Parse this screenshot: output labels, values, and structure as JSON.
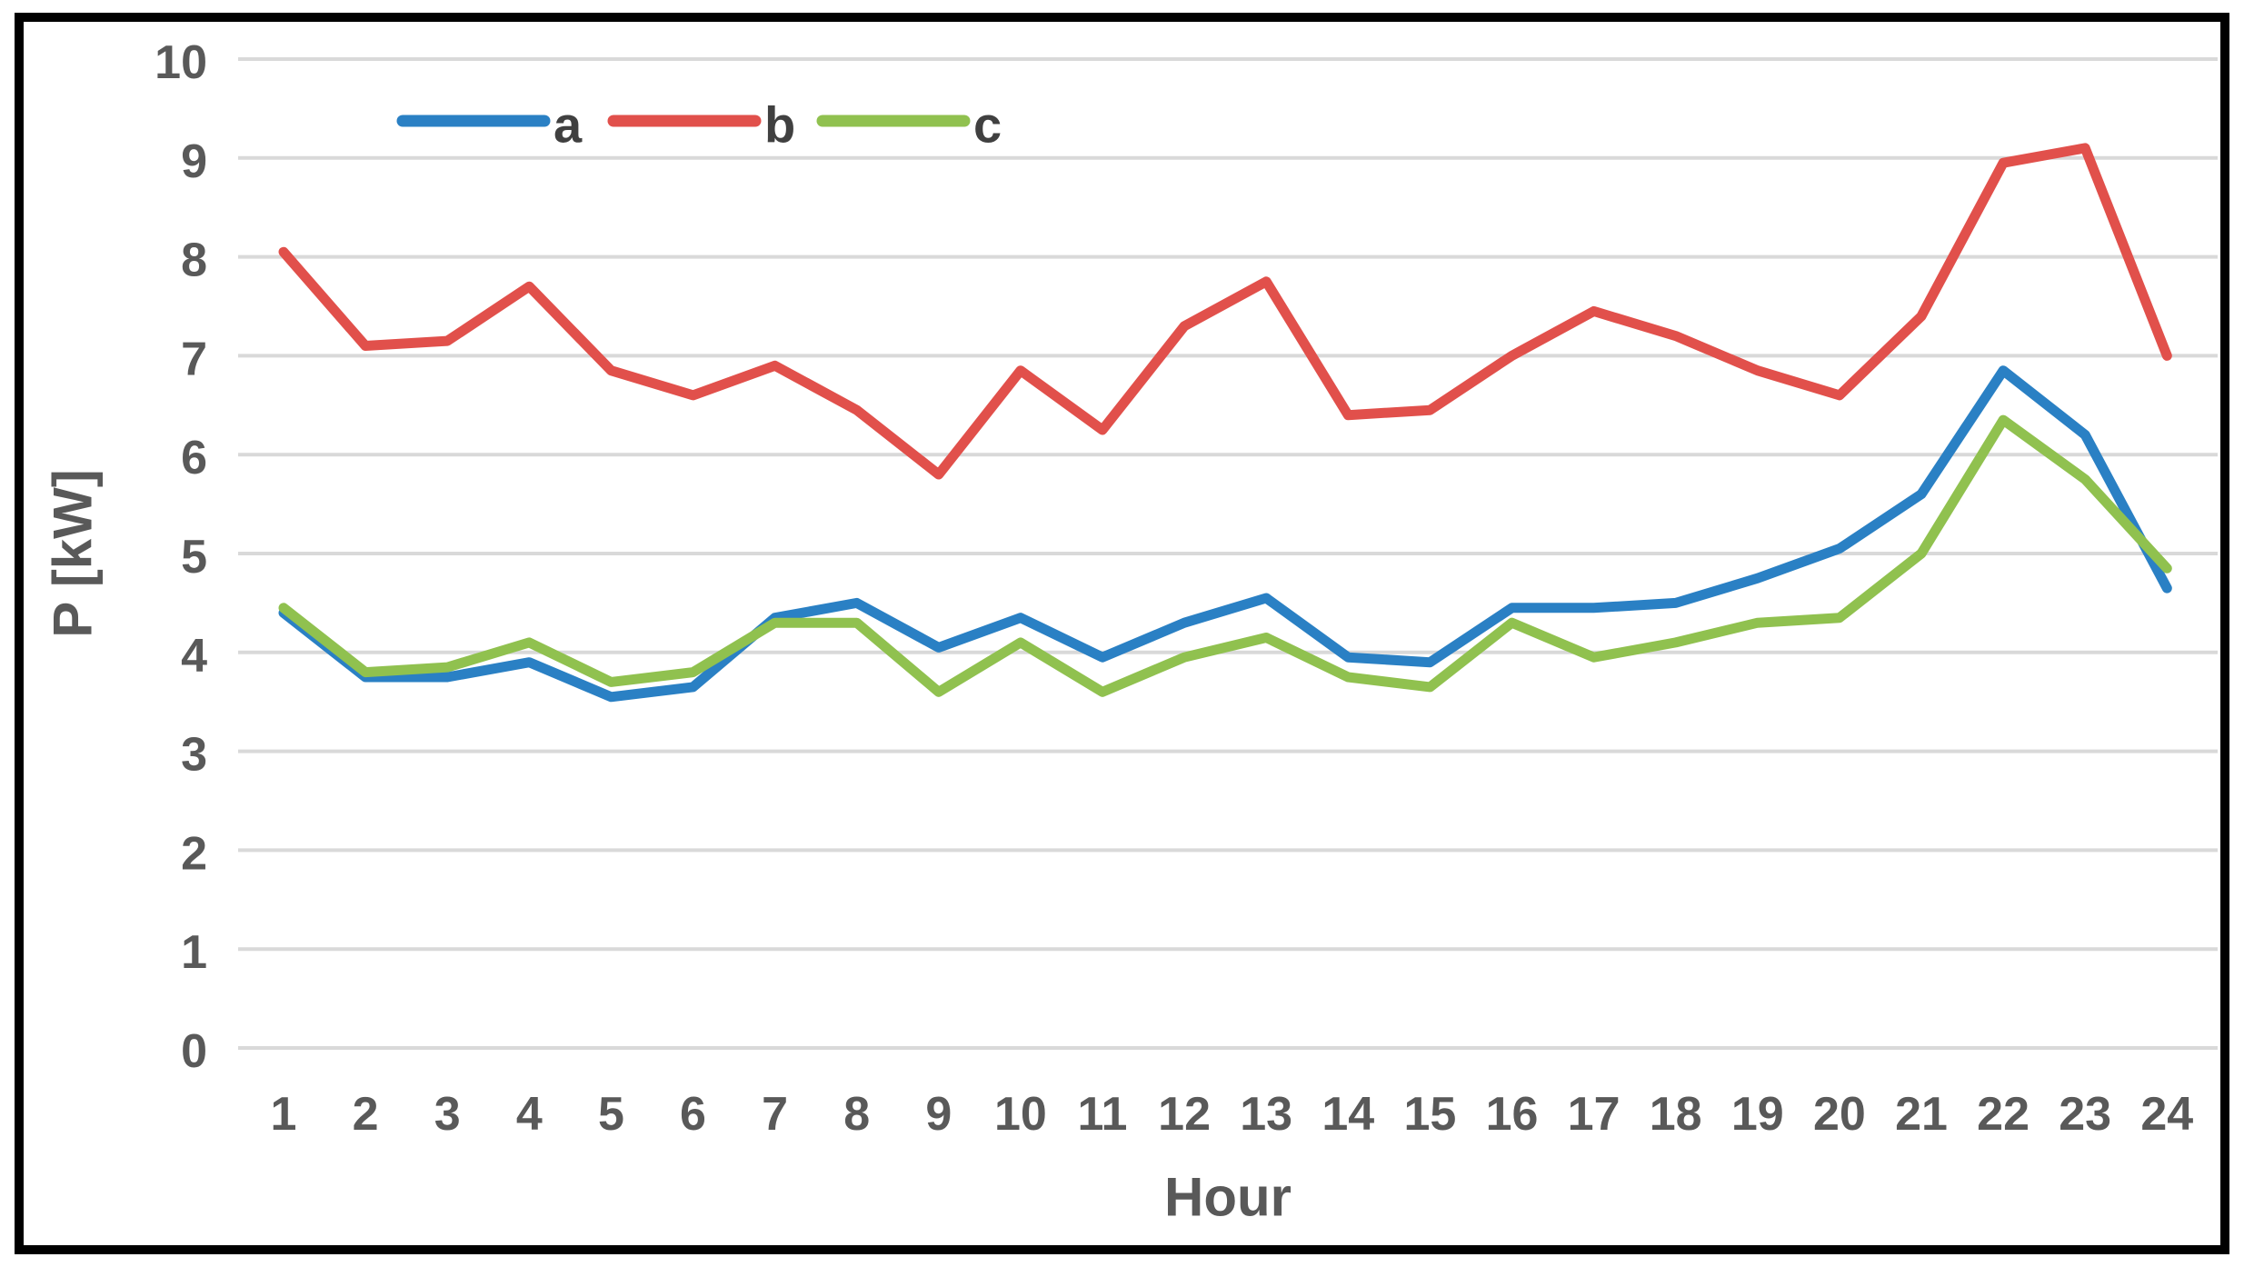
{
  "chart_data": {
    "type": "line",
    "title": "",
    "xlabel": "Hour",
    "ylabel": "P [kW]",
    "x": [
      1,
      2,
      3,
      4,
      5,
      6,
      7,
      8,
      9,
      10,
      11,
      12,
      13,
      14,
      15,
      16,
      17,
      18,
      19,
      20,
      21,
      22,
      23,
      24
    ],
    "yticks": [
      0,
      1,
      2,
      3,
      4,
      5,
      6,
      7,
      8,
      9,
      10
    ],
    "ylim": [
      0,
      10
    ],
    "grid": "horizontal-only",
    "legend_position": "top-inside",
    "series": [
      {
        "name": "a",
        "color": "#2A80C4",
        "values": [
          4.4,
          3.75,
          3.75,
          3.9,
          3.55,
          3.65,
          4.35,
          4.5,
          4.05,
          4.35,
          3.95,
          4.3,
          4.55,
          3.95,
          3.9,
          4.45,
          4.45,
          4.5,
          4.75,
          5.05,
          5.6,
          6.85,
          6.2,
          4.65
        ]
      },
      {
        "name": "b",
        "color": "#E1504B",
        "values": [
          8.05,
          7.1,
          7.15,
          7.7,
          6.85,
          6.6,
          6.9,
          6.45,
          5.8,
          6.85,
          6.25,
          7.3,
          7.75,
          6.4,
          6.45,
          7.0,
          7.45,
          7.2,
          6.85,
          6.6,
          7.4,
          8.95,
          9.1,
          7.0
        ]
      },
      {
        "name": "c",
        "color": "#90C14F",
        "values": [
          4.45,
          3.8,
          3.85,
          4.1,
          3.7,
          3.8,
          4.3,
          4.3,
          3.6,
          4.1,
          3.6,
          3.95,
          4.15,
          3.75,
          3.65,
          4.3,
          3.95,
          4.1,
          4.3,
          4.35,
          5.0,
          6.35,
          5.75,
          4.85
        ]
      }
    ]
  },
  "styles": {
    "background": "#FFFFFF",
    "border_color": "#000000",
    "grid_color": "#D9D9D9",
    "text_color": "#595959",
    "series_a_color": "#2A80C4",
    "series_b_color": "#E1504B",
    "series_c_color": "#90C14F"
  }
}
